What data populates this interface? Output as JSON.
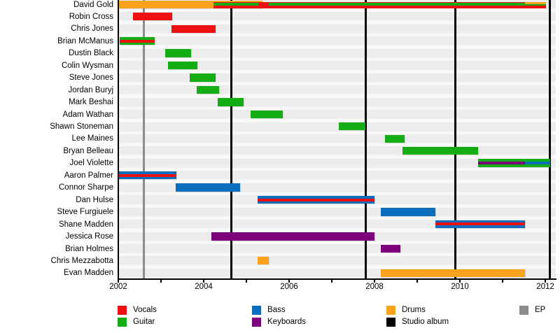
{
  "chart_data": {
    "type": "timeline",
    "description": "Band member timeline gantt chart",
    "x_axis": {
      "start_year": 2002,
      "end_year": 2012.25,
      "tick_every_years": 1,
      "label_every_years": 2,
      "tick_labels": [
        "2002",
        "2004",
        "2006",
        "2008",
        "2010",
        "2012"
      ]
    },
    "roles": {
      "vocals": "#ee1111",
      "guitar": "#14ad14",
      "bass": "#0a6ebd",
      "keyboards": "#7d007d",
      "drums": "#f9a21c",
      "studio_album": "#000000",
      "ep": "#8c8c8c"
    },
    "event_lines": [
      {
        "type": "ep",
        "year": 2002.6
      },
      {
        "type": "studio_album",
        "year": 2004.65
      },
      {
        "type": "studio_album",
        "year": 2007.79
      },
      {
        "type": "studio_album",
        "year": 2009.9
      },
      {
        "type": "studio_album",
        "year": 2012.11
      }
    ],
    "members": [
      {
        "name": "David Gold",
        "bars": [
          {
            "role": "drums",
            "from": 2002.0,
            "till": 2005.37
          },
          {
            "role": "vocals",
            "from": 2004.23,
            "till": 2012.02,
            "style": "inset_top"
          },
          {
            "role": "guitar",
            "from": 2004.23,
            "till": 2005.28,
            "style": "stripe"
          },
          {
            "role": "guitar",
            "from": 2005.52,
            "till": 2012.02,
            "style": "stripe"
          },
          {
            "role": "drums",
            "from": 2011.52,
            "till": 2012.02,
            "style": "half_top"
          }
        ]
      },
      {
        "name": "Robin Cross",
        "bars": [
          {
            "role": "vocals",
            "from": 2002.35,
            "till": 2003.27
          }
        ]
      },
      {
        "name": "Chris Jones",
        "bars": [
          {
            "role": "vocals",
            "from": 2003.25,
            "till": 2004.28
          }
        ]
      },
      {
        "name": "Brian McManus",
        "bars": [
          {
            "role": "guitar",
            "from": 2002.03,
            "till": 2002.85
          },
          {
            "role": "vocals",
            "from": 2002.03,
            "till": 2002.85,
            "style": "stripe"
          }
        ]
      },
      {
        "name": "Dustin Black",
        "bars": [
          {
            "role": "guitar",
            "from": 2003.1,
            "till": 2003.7
          }
        ]
      },
      {
        "name": "Colin Wysman",
        "bars": [
          {
            "role": "guitar",
            "from": 2003.16,
            "till": 2003.85
          }
        ]
      },
      {
        "name": "Steve Jones",
        "bars": [
          {
            "role": "guitar",
            "from": 2003.67,
            "till": 2004.28
          }
        ]
      },
      {
        "name": "Jordan Buryj",
        "bars": [
          {
            "role": "guitar",
            "from": 2003.84,
            "till": 2004.36
          }
        ]
      },
      {
        "name": "Mark Beshai",
        "bars": [
          {
            "role": "guitar",
            "from": 2004.33,
            "till": 2004.93
          }
        ]
      },
      {
        "name": "Adam Wathan",
        "bars": [
          {
            "role": "guitar",
            "from": 2005.1,
            "till": 2005.85
          }
        ]
      },
      {
        "name": "Shawn Stoneman",
        "bars": [
          {
            "role": "guitar",
            "from": 2007.16,
            "till": 2007.79
          }
        ]
      },
      {
        "name": "Lee Maines",
        "bars": [
          {
            "role": "guitar",
            "from": 2008.25,
            "till": 2008.7
          }
        ]
      },
      {
        "name": "Bryan Belleau",
        "bars": [
          {
            "role": "guitar",
            "from": 2008.66,
            "till": 2010.43
          }
        ]
      },
      {
        "name": "Joel Violette",
        "bars": [
          {
            "role": "guitar",
            "from": 2010.43,
            "till": 2012.11
          },
          {
            "role": "keyboards",
            "from": 2010.43,
            "till": 2011.52,
            "style": "stripe"
          },
          {
            "role": "bass",
            "from": 2011.52,
            "till": 2012.11,
            "style": "stripe"
          }
        ]
      },
      {
        "name": "Aaron Palmer",
        "bars": [
          {
            "role": "bass",
            "from": 2002.0,
            "till": 2003.36
          },
          {
            "role": "vocals",
            "from": 2002.0,
            "till": 2003.36,
            "style": "stripe"
          }
        ]
      },
      {
        "name": "Connor Sharpe",
        "bars": [
          {
            "role": "bass",
            "from": 2003.34,
            "till": 2004.85
          }
        ]
      },
      {
        "name": "Dan Hulse",
        "bars": [
          {
            "role": "bass",
            "from": 2005.26,
            "till": 2008.0
          },
          {
            "role": "vocals",
            "from": 2005.26,
            "till": 2008.0,
            "style": "stripe"
          }
        ]
      },
      {
        "name": "Steve Furgiuele",
        "bars": [
          {
            "role": "bass",
            "from": 2008.15,
            "till": 2009.43
          }
        ]
      },
      {
        "name": "Shane Madden",
        "bars": [
          {
            "role": "bass",
            "from": 2009.43,
            "till": 2011.52
          },
          {
            "role": "vocals",
            "from": 2009.43,
            "till": 2011.52,
            "style": "stripe"
          }
        ]
      },
      {
        "name": "Jessica Rose",
        "bars": [
          {
            "role": "keyboards",
            "from": 2004.18,
            "till": 2008.0
          }
        ]
      },
      {
        "name": "Brian Holmes",
        "bars": [
          {
            "role": "keyboards",
            "from": 2008.15,
            "till": 2008.61
          }
        ]
      },
      {
        "name": "Chris Mezzabotta",
        "bars": [
          {
            "role": "drums",
            "from": 2005.26,
            "till": 2005.52
          }
        ]
      },
      {
        "name": "Evan Madden",
        "bars": [
          {
            "role": "drums",
            "from": 2008.15,
            "till": 2011.52
          }
        ]
      }
    ],
    "legend": {
      "columns": [
        {
          "items": [
            {
              "label": "Vocals",
              "role": "vocals"
            },
            {
              "label": "Guitar",
              "role": "guitar"
            }
          ]
        },
        {
          "items": [
            {
              "label": "Bass",
              "role": "bass"
            },
            {
              "label": "Keyboards",
              "role": "keyboards"
            }
          ]
        },
        {
          "items": [
            {
              "label": "Drums",
              "role": "drums"
            },
            {
              "label": "Studio album",
              "role": "studio_album"
            }
          ]
        },
        {
          "items": [
            {
              "label": "EP",
              "role": "ep"
            }
          ]
        }
      ]
    }
  }
}
